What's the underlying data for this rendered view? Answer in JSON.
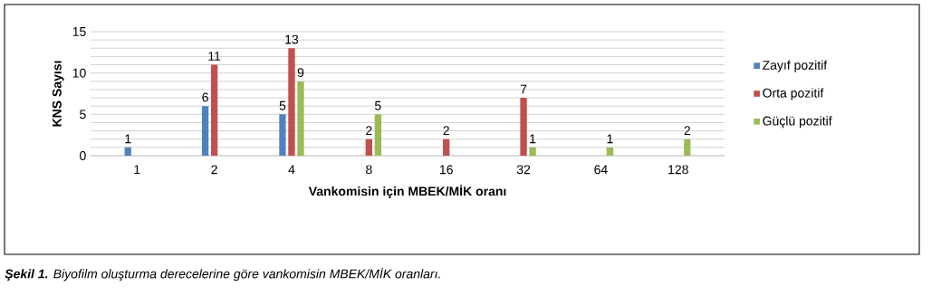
{
  "chart_data": {
    "type": "bar",
    "xlabel": "Vankomisin için MBEK/MİK oranı",
    "ylabel": "KNS Sayısı",
    "categories": [
      "1",
      "2",
      "4",
      "8",
      "16",
      "32",
      "64",
      "128"
    ],
    "series": [
      {
        "name": "Zayıf pozitif",
        "color": "#4f81bd",
        "values": [
          1,
          6,
          5,
          null,
          null,
          null,
          null,
          null
        ]
      },
      {
        "name": "Orta pozitif",
        "color": "#c0504d",
        "values": [
          null,
          11,
          13,
          2,
          2,
          7,
          null,
          null
        ]
      },
      {
        "name": "Güçlü pozitif",
        "color": "#9bbb59",
        "values": [
          null,
          null,
          9,
          5,
          null,
          1,
          1,
          2
        ]
      }
    ],
    "ylim": [
      0,
      15
    ],
    "yticks": [
      0,
      5,
      10,
      15
    ],
    "grid": "y",
    "legend": "right",
    "data_labels": true,
    "annotations": [
      "**Şekil 1.** Biyofilm oluşturma derecelerine göre vankomisin MBEK/MİK oranları."
    ]
  }
}
